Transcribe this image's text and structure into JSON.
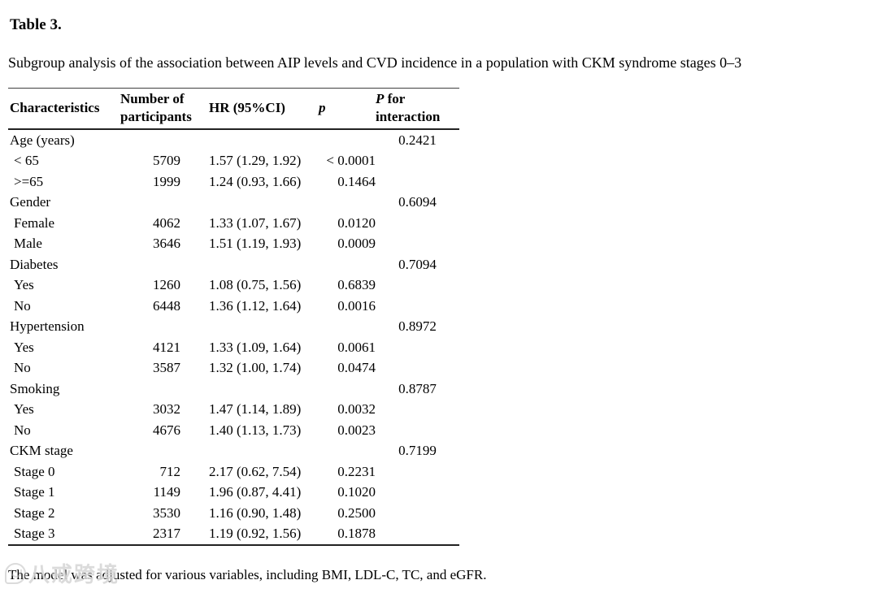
{
  "page": {
    "title": "Table 3.",
    "subtitle": "Subgroup analysis of the association between AIP levels and CVD incidence in a population with CKM syndrome stages 0–3",
    "footnote": "The model was adjusted for various variables, including BMI, LDL-C, TC, and eGFR."
  },
  "colors": {
    "text": "#000000",
    "rule": "#222222",
    "watermark": "#bebebe"
  },
  "watermark": {
    "text": "八戒跨境",
    "icon": "watermark-logo-icon"
  },
  "table": {
    "headers": {
      "characteristics": "Characteristics",
      "participants_line1": "Number of",
      "participants_line2": "participants",
      "hr": "HR (95%CI)",
      "p": "p",
      "p_interaction_line1": "P for",
      "p_interaction_line2": "interaction"
    },
    "rows": [
      {
        "characteristic": "Age (years)",
        "n": "",
        "hr": "",
        "p": "",
        "p_interaction": "0.2421",
        "indent": false
      },
      {
        "characteristic": "< 65",
        "n": "5709",
        "hr": "1.57 (1.29, 1.92)",
        "p": "< 0.0001",
        "p_interaction": "",
        "indent": true
      },
      {
        "characteristic": ">=65",
        "n": "1999",
        "hr": "1.24 (0.93, 1.66)",
        "p": "0.1464",
        "p_interaction": "",
        "indent": true
      },
      {
        "characteristic": "Gender",
        "n": "",
        "hr": "",
        "p": "",
        "p_interaction": "0.6094",
        "indent": false
      },
      {
        "characteristic": "Female",
        "n": "4062",
        "hr": "1.33 (1.07, 1.67)",
        "p": "0.0120",
        "p_interaction": "",
        "indent": true
      },
      {
        "characteristic": "Male",
        "n": "3646",
        "hr": "1.51 (1.19, 1.93)",
        "p": "0.0009",
        "p_interaction": "",
        "indent": true
      },
      {
        "characteristic": "Diabetes",
        "n": "",
        "hr": "",
        "p": "",
        "p_interaction": "0.7094",
        "indent": false
      },
      {
        "characteristic": "Yes",
        "n": "1260",
        "hr": "1.08 (0.75, 1.56)",
        "p": "0.6839",
        "p_interaction": "",
        "indent": true
      },
      {
        "characteristic": "No",
        "n": "6448",
        "hr": "1.36 (1.12, 1.64)",
        "p": "0.0016",
        "p_interaction": "",
        "indent": true
      },
      {
        "characteristic": "Hypertension",
        "n": "",
        "hr": "",
        "p": "",
        "p_interaction": "0.8972",
        "indent": false
      },
      {
        "characteristic": "Yes",
        "n": "4121",
        "hr": "1.33 (1.09, 1.64)",
        "p": "0.0061",
        "p_interaction": "",
        "indent": true
      },
      {
        "characteristic": "No",
        "n": "3587",
        "hr": "1.32 (1.00, 1.74)",
        "p": "0.0474",
        "p_interaction": "",
        "indent": true
      },
      {
        "characteristic": "Smoking",
        "n": "",
        "hr": "",
        "p": "",
        "p_interaction": "0.8787",
        "indent": false
      },
      {
        "characteristic": "Yes",
        "n": "3032",
        "hr": "1.47 (1.14, 1.89)",
        "p": "0.0032",
        "p_interaction": "",
        "indent": true
      },
      {
        "characteristic": "No",
        "n": "4676",
        "hr": "1.40 (1.13, 1.73)",
        "p": "0.0023",
        "p_interaction": "",
        "indent": true
      },
      {
        "characteristic": "CKM stage",
        "n": "",
        "hr": "",
        "p": "",
        "p_interaction": "0.7199",
        "indent": false
      },
      {
        "characteristic": "Stage 0",
        "n": "712",
        "hr": "2.17 (0.62, 7.54)",
        "p": "0.2231",
        "p_interaction": "",
        "indent": true
      },
      {
        "characteristic": "Stage 1",
        "n": "1149",
        "hr": "1.96 (0.87, 4.41)",
        "p": "0.1020",
        "p_interaction": "",
        "indent": true
      },
      {
        "characteristic": "Stage 2",
        "n": "3530",
        "hr": "1.16 (0.90, 1.48)",
        "p": "0.2500",
        "p_interaction": "",
        "indent": true
      },
      {
        "characteristic": "Stage 3",
        "n": "2317",
        "hr": "1.19 (0.92, 1.56)",
        "p": "0.1878",
        "p_interaction": "",
        "indent": true
      }
    ]
  }
}
